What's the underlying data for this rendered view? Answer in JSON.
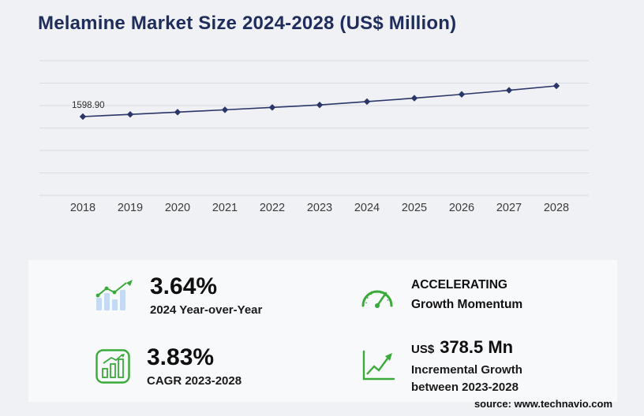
{
  "title": "Melamine Market Size 2024-2028 (US$ Million)",
  "source": "source: www.technavio.com",
  "chart_data": {
    "type": "line",
    "title": "Melamine Market Size 2024-2028 (US$ Million)",
    "x": [
      2018,
      2019,
      2020,
      2021,
      2022,
      2023,
      2024,
      2025,
      2026,
      2027,
      2028
    ],
    "values": [
      1598.9,
      1642.6,
      1687.4,
      1733.5,
      1780.9,
      1829.6,
      1896.2,
      1964.5,
      2040.1,
      2120.5,
      2208.1
    ],
    "first_point_label": "1598.90",
    "xlabel": "",
    "ylabel": "US$ Million",
    "grid": true,
    "legend": "none",
    "line_color": "#2b3668",
    "marker": "diamond"
  },
  "stats": {
    "yoy": {
      "value": "3.64%",
      "label": "2024 Year-over-Year"
    },
    "momentum": {
      "line1": "ACCELERATING",
      "line2": "Growth Momentum"
    },
    "cagr": {
      "value": "3.83%",
      "label": "CAGR 2023-2028"
    },
    "incremental": {
      "currency": "US$",
      "value": "378.5 Mn",
      "line1": "Incremental Growth",
      "line2": "between 2023-2028"
    }
  },
  "colors": {
    "accent_green": "#3aab3a",
    "navy": "#1e2d5b",
    "bar_blue": "#c3d9f4"
  }
}
